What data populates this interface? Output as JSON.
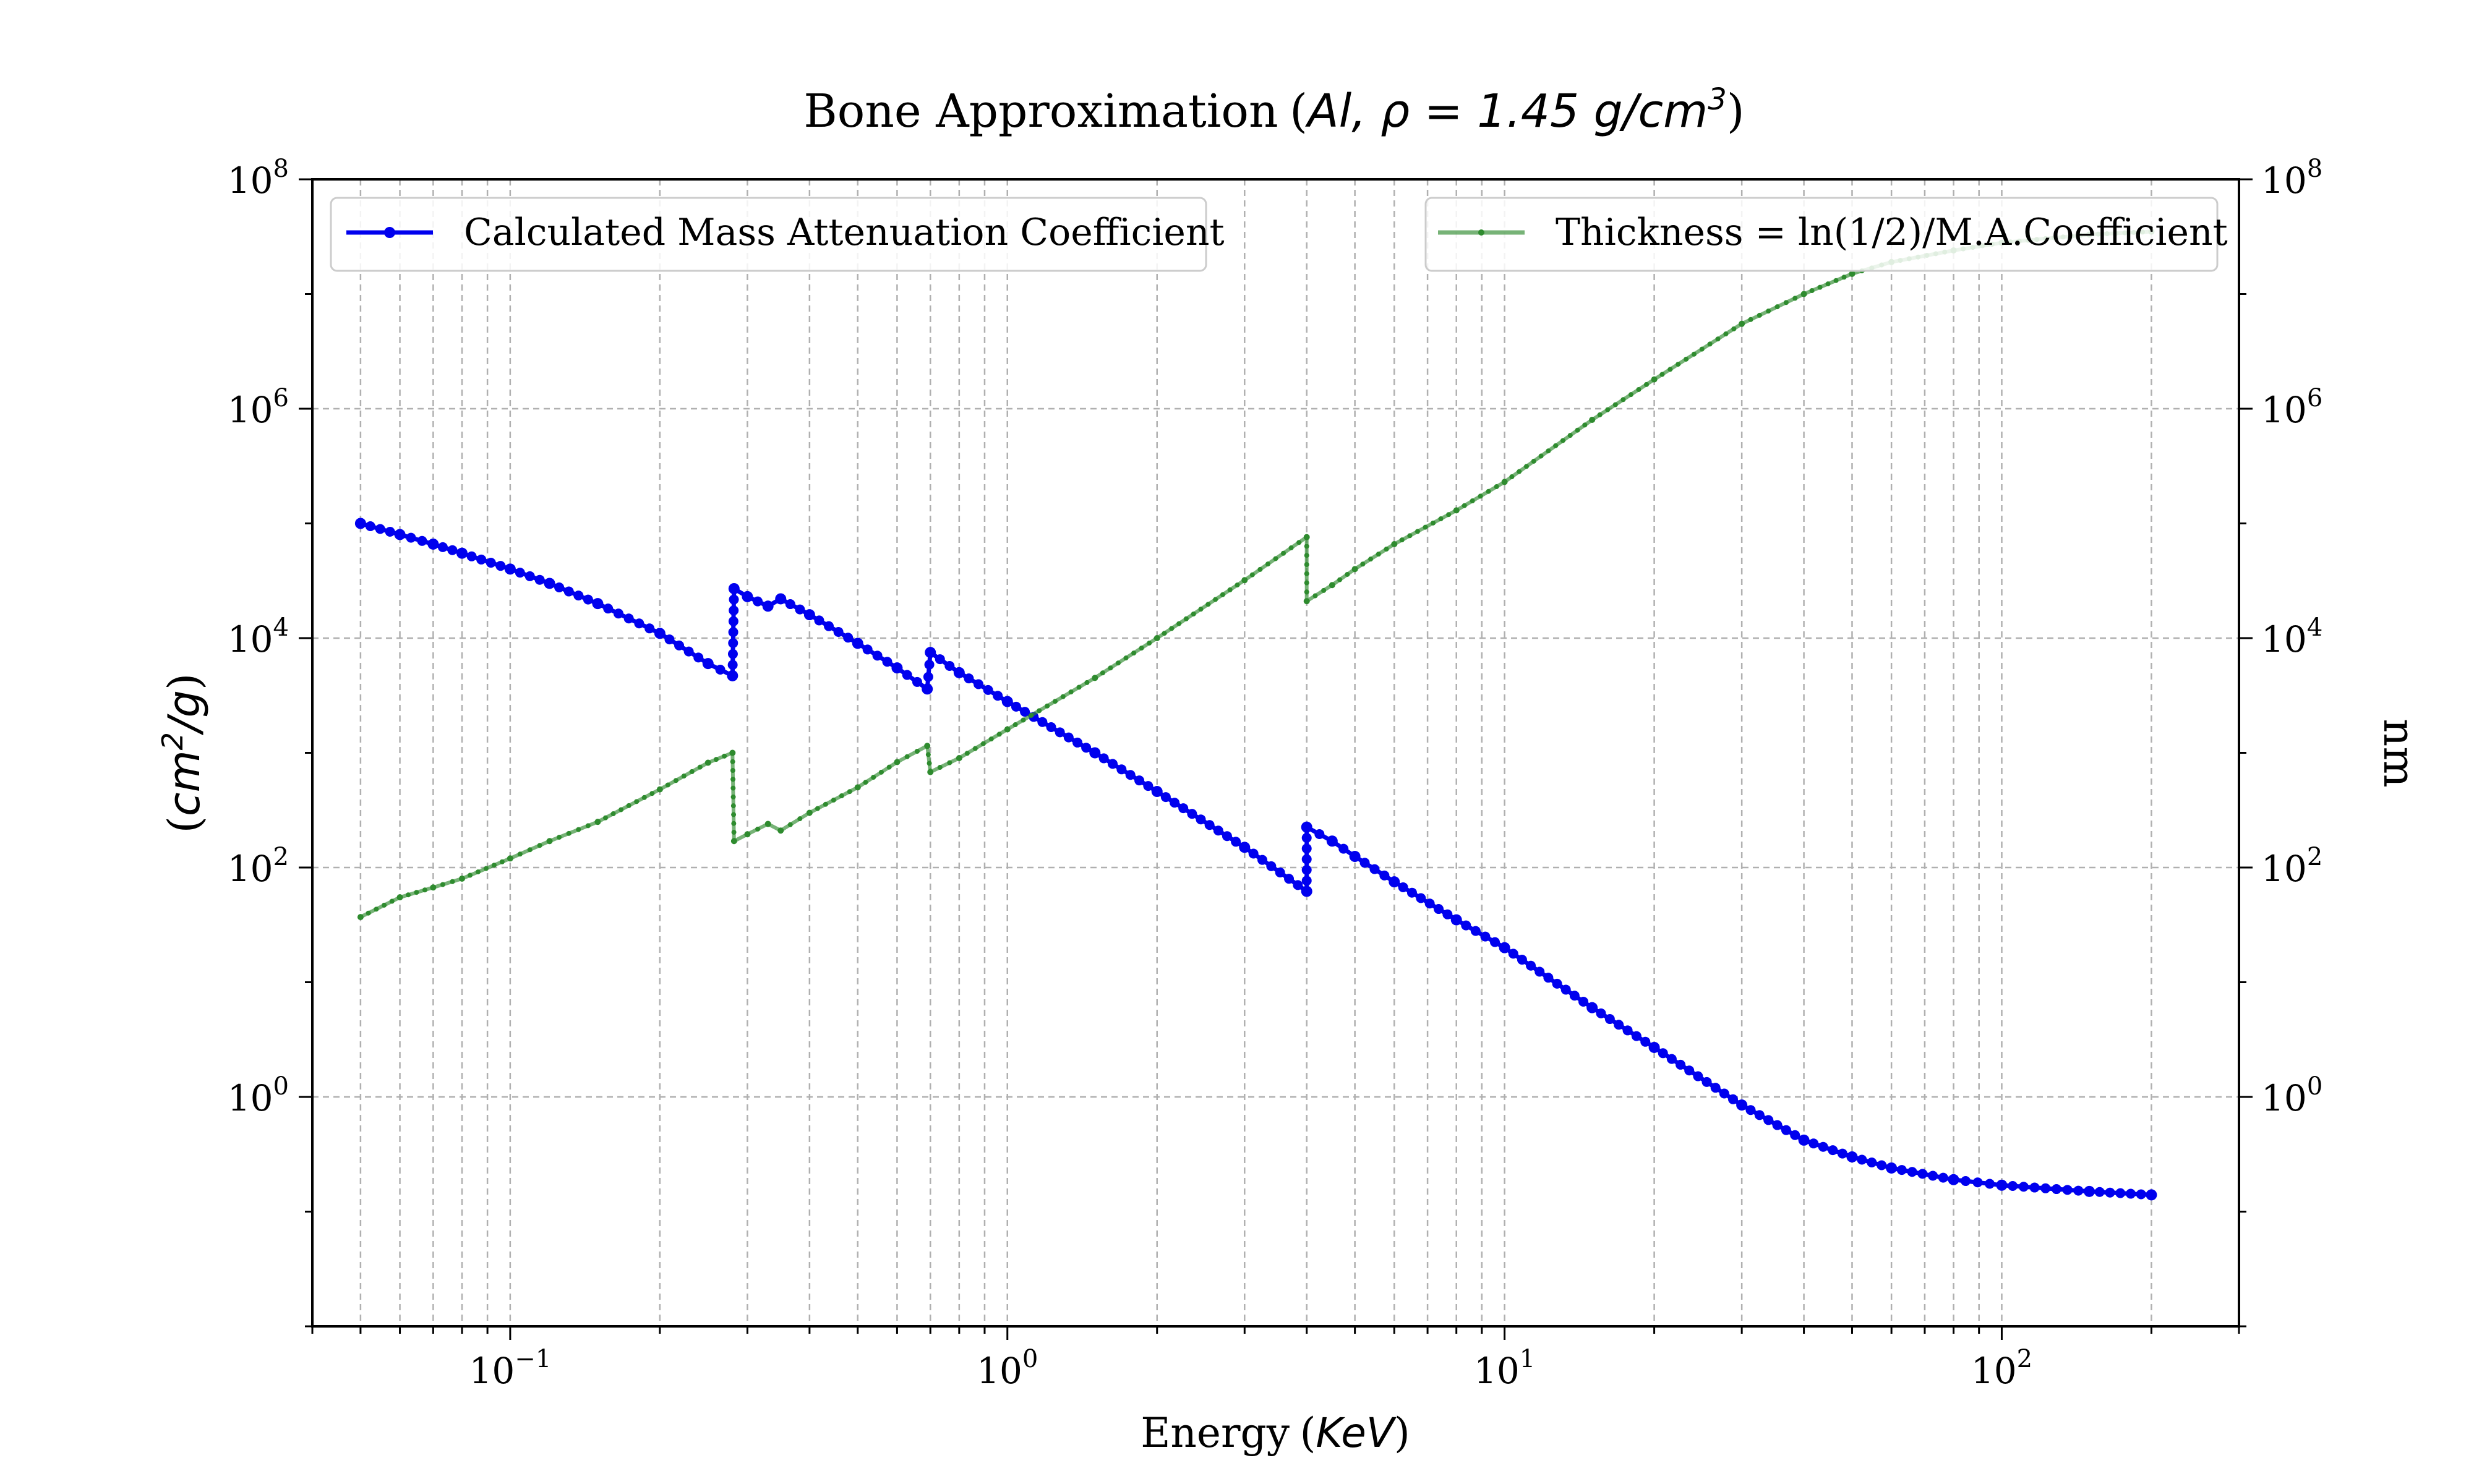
{
  "chart_data": {
    "type": "line",
    "title": {
      "text": "Bone Approximation",
      "math": "Al,  ρ = 1.45 g/cm",
      "superscript": "3"
    },
    "xlabel": {
      "text": "Energy",
      "math": "KeV"
    },
    "ylabel_left": {
      "math": "cm",
      "superscript": "2",
      "suffix": "/g"
    },
    "ylabel_right": "nm",
    "x_scale": "log",
    "y_scale": "log",
    "xlim": [
      0.04,
      300
    ],
    "ylim_left": [
      0.01,
      100000000
    ],
    "ylim_right": [
      0.01,
      100000000
    ],
    "grid": "both (major and minor on x, major on y), dashed gray",
    "x_ticks": [
      {
        "value": 0.1,
        "base": "10",
        "exp": "−1"
      },
      {
        "value": 1,
        "base": "10",
        "exp": "0"
      },
      {
        "value": 10,
        "base": "10",
        "exp": "1"
      },
      {
        "value": 100,
        "base": "10",
        "exp": "2"
      }
    ],
    "y_ticks_left": [
      {
        "value": 1,
        "base": "10",
        "exp": "0"
      },
      {
        "value": 100,
        "base": "10",
        "exp": "2"
      },
      {
        "value": 10000,
        "base": "10",
        "exp": "4"
      },
      {
        "value": 1000000,
        "base": "10",
        "exp": "6"
      },
      {
        "value": 100000000,
        "base": "10",
        "exp": "8"
      }
    ],
    "y_ticks_right": [
      {
        "value": 1,
        "base": "10",
        "exp": "0"
      },
      {
        "value": 100,
        "base": "10",
        "exp": "2"
      },
      {
        "value": 10000,
        "base": "10",
        "exp": "4"
      },
      {
        "value": 1000000,
        "base": "10",
        "exp": "6"
      },
      {
        "value": 100000000,
        "base": "10",
        "exp": "8"
      }
    ],
    "series": [
      {
        "name": "Calculated Mass Attenuation Coefficient",
        "axis": "left",
        "color": "#0000ee",
        "marker": "dot",
        "legend_position": "upper-left",
        "x": [
          0.05,
          0.06,
          0.07,
          0.08,
          0.1,
          0.12,
          0.15,
          0.2,
          0.25,
          0.28,
          0.282,
          0.3,
          0.33,
          0.35,
          0.4,
          0.5,
          0.6,
          0.69,
          0.7,
          0.8,
          1.0,
          1.5,
          2.0,
          3.0,
          4.0,
          4.0,
          4.5,
          5,
          6,
          8,
          10,
          15,
          20,
          30,
          40,
          50,
          60,
          80,
          100,
          150,
          200
        ],
        "y": [
          100000,
          80000,
          66000,
          55000,
          40000,
          30000,
          20000,
          11000,
          6000,
          4700,
          27000,
          23000,
          19000,
          22000,
          16000,
          9000,
          5500,
          3600,
          7500,
          5000,
          2800,
          1000,
          460,
          150,
          62,
          225,
          170,
          125,
          75,
          35,
          20,
          6,
          2.7,
          0.85,
          0.42,
          0.3,
          0.24,
          0.19,
          0.17,
          0.15,
          0.14
        ]
      },
      {
        "name": "Thickness = ln(1/2)/M.A.Coefficient",
        "axis": "right",
        "color": "#2e8b2e",
        "marker": "dot",
        "legend_position": "upper-right",
        "x": [
          0.05,
          0.06,
          0.07,
          0.08,
          0.1,
          0.12,
          0.15,
          0.2,
          0.25,
          0.28,
          0.282,
          0.3,
          0.33,
          0.35,
          0.4,
          0.5,
          0.6,
          0.69,
          0.7,
          0.8,
          1.0,
          1.5,
          2.0,
          3.0,
          4.0,
          4.0,
          4.5,
          5,
          6,
          8,
          10,
          15,
          20,
          30,
          40,
          50,
          60,
          80,
          100,
          150,
          200
        ],
        "y": [
          37,
          55,
          67,
          80,
          120,
          170,
          250,
          480,
          820,
          1000,
          170,
          195,
          240,
          210,
          300,
          500,
          830,
          1150,
          680,
          900,
          1600,
          4500,
          10000,
          32000,
          76000,
          21000,
          29000,
          40000,
          66000,
          130000,
          230000,
          800000,
          1800000,
          5500000,
          10000000,
          15000000,
          19000000,
          24000000,
          28000000,
          33000000,
          35000000
        ]
      }
    ]
  }
}
